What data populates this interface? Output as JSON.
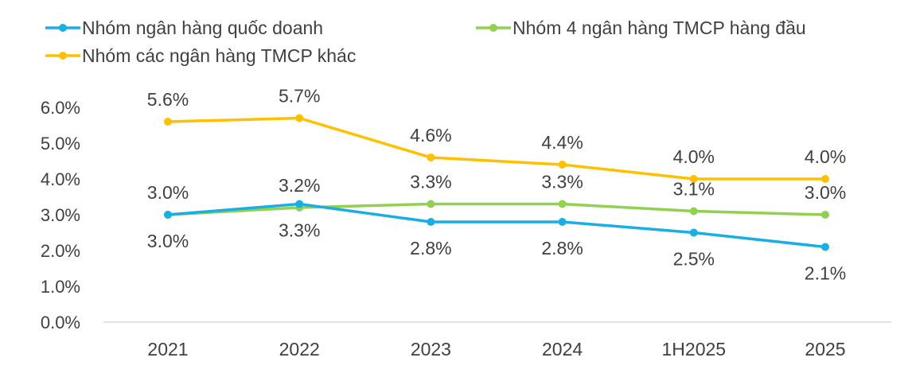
{
  "chart_data": {
    "type": "line",
    "title": "",
    "xlabel": "",
    "ylabel": "",
    "categories": [
      "2021",
      "2022",
      "2023",
      "2024",
      "1H2025",
      "2025"
    ],
    "ylim": [
      0,
      6
    ],
    "yticks": [
      "0.0%",
      "1.0%",
      "2.0%",
      "3.0%",
      "4.0%",
      "5.0%",
      "6.0%"
    ],
    "grid": false,
    "legend_position": "top",
    "series": [
      {
        "name": "Nhóm ngân hàng quốc doanh",
        "color": "#1AAEE5",
        "values": [
          3.0,
          3.3,
          2.8,
          2.8,
          2.5,
          2.1
        ],
        "labels": [
          "3.0%",
          "3.3%",
          "2.8%",
          "2.8%",
          "2.5%",
          "2.1%"
        ],
        "label_pos": "below"
      },
      {
        "name": "Nhóm 4 ngân hàng TMCP hàng đầu",
        "color": "#92D050",
        "values": [
          3.0,
          3.2,
          3.3,
          3.3,
          3.1,
          3.0
        ],
        "labels": [
          "3.0%",
          "3.2%",
          "3.3%",
          "3.3%",
          "3.1%",
          "3.0%"
        ],
        "label_pos": "above"
      },
      {
        "name": "Nhóm các ngân hàng TMCP khác",
        "color": "#FFC000",
        "values": [
          5.6,
          5.7,
          4.6,
          4.4,
          4.0,
          4.0
        ],
        "labels": [
          "5.6%",
          "5.7%",
          "4.6%",
          "4.4%",
          "4.0%",
          "4.0%"
        ],
        "label_pos": "above"
      }
    ]
  }
}
